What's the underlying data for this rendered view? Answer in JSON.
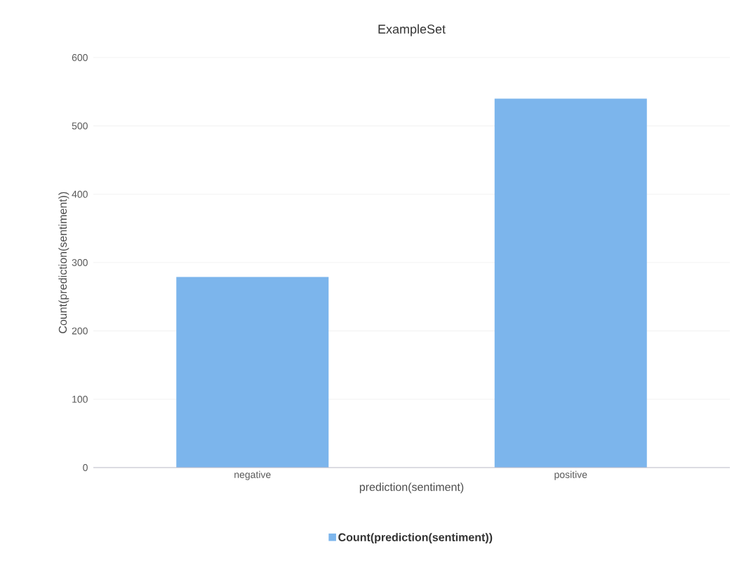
{
  "chart_data": {
    "type": "bar",
    "title": "ExampleSet",
    "xlabel": "prediction(sentiment)",
    "ylabel": "Count(prediction(sentiment))",
    "categories": [
      "negative",
      "positive"
    ],
    "series": [
      {
        "name": "Count(prediction(sentiment))",
        "color": "#7cb5ec",
        "values": [
          279,
          540
        ]
      }
    ],
    "ylim": [
      0,
      600
    ],
    "yticks": [
      0,
      100,
      200,
      300,
      400,
      500,
      600
    ],
    "grid": "y",
    "legend": "bottom"
  }
}
